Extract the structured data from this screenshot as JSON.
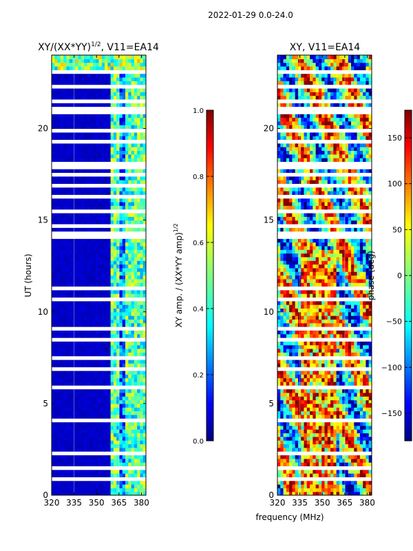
{
  "suptitle": "2022-01-29 0.0-24.0",
  "shared_xlabel": "frequency (MHz)",
  "chart_data": [
    {
      "type": "heatmap",
      "title": "XY/(XX*YY)",
      "title_exponent": "1/2",
      "title_suffix": ", V11=EA14",
      "xlabel": "",
      "ylabel": "UT (hours)",
      "xlim": [
        320,
        383
      ],
      "ylim": [
        0,
        24
      ],
      "xticks": [
        320,
        335,
        350,
        365,
        380
      ],
      "yticks": [
        0,
        5,
        10,
        15,
        20
      ],
      "colormap": "jet",
      "colorbar": {
        "label": "XY amp. / (XX*YY amp)",
        "label_exponent": "1/2",
        "range": [
          0.0,
          1.0
        ],
        "ticks": [
          "0.0",
          "0.2",
          "0.4",
          "0.6",
          "0.8",
          "1.0"
        ]
      },
      "features": {
        "low_band_level": 0.05,
        "bright_band_mhz": [
          360,
          383
        ],
        "bright_band_level": 0.45
      }
    },
    {
      "type": "heatmap",
      "title": "XY, V11=EA14",
      "xlabel": "frequency (MHz)",
      "ylabel": "",
      "xlim": [
        320,
        383
      ],
      "ylim": [
        0,
        24
      ],
      "xticks": [
        320,
        335,
        350,
        365,
        380
      ],
      "yticks": [
        0,
        5,
        10,
        15,
        20
      ],
      "colormap": "jet",
      "colorbar": {
        "label": "phase (deg)",
        "range": [
          -180,
          180
        ],
        "ticks": [
          "−150",
          "−100",
          "−50",
          "0",
          "50",
          "100",
          "150"
        ]
      }
    }
  ],
  "colors": {
    "jet_stops": [
      "#00007f",
      "#0000ff",
      "#007fff",
      "#00ffff",
      "#7fff7f",
      "#ffff00",
      "#ff7f00",
      "#ff0000",
      "#7f0000"
    ]
  }
}
